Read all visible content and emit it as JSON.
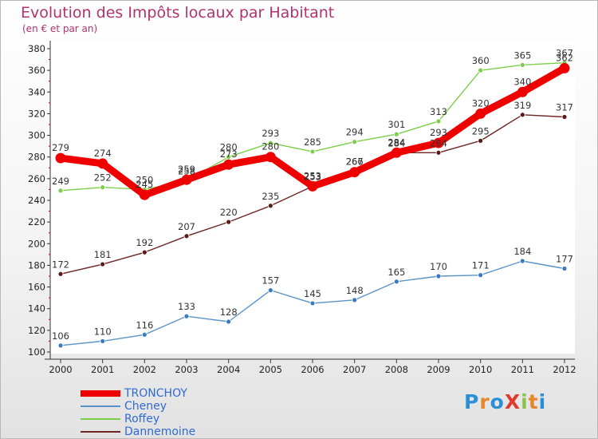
{
  "header": {
    "title": "Evolution des Impôts locaux par Habitant",
    "subtitle": "(en € et par an)"
  },
  "logo": {
    "text": "ProXiti",
    "colors": [
      "#2a8fd6",
      "#e8862a",
      "#2a8fd6",
      "#e03a2a",
      "#8bc34a",
      "#e8862a",
      "#2a8fd6"
    ]
  },
  "chart_data": {
    "type": "line",
    "title": "Evolution des Impôts locaux par Habitant",
    "subtitle": "(en € et par an)",
    "xlabel": "",
    "ylabel": "",
    "categories": [
      "2000",
      "2001",
      "2002",
      "2003",
      "2004",
      "2005",
      "2006",
      "2007",
      "2008",
      "2009",
      "2010",
      "2011",
      "2012"
    ],
    "ylim": [
      100,
      380
    ],
    "yticks": [
      100,
      120,
      140,
      160,
      180,
      200,
      220,
      240,
      260,
      280,
      300,
      320,
      340,
      360,
      380
    ],
    "grid": false,
    "legend_position": "bottom-left",
    "series": [
      {
        "name": "TRONCHOY",
        "color": "#ee0000",
        "bold": true,
        "values": [
          279,
          274,
          245,
          259,
          273,
          280,
          253,
          266,
          284,
          293,
          320,
          340,
          362
        ],
        "labels": [
          "279",
          "274",
          "245",
          "259",
          "273",
          "280",
          "253",
          "266",
          "284",
          "293",
          "320",
          "340",
          "362"
        ]
      },
      {
        "name": "Cheney",
        "color": "#5a93c8",
        "point_color": "#3a7bc0",
        "values": [
          106,
          110,
          116,
          133,
          128,
          157,
          145,
          148,
          165,
          170,
          171,
          184,
          177
        ],
        "labels": [
          "106",
          "110",
          "116",
          "133",
          "128",
          "157",
          "145",
          "148",
          "165",
          "170",
          "171",
          "184",
          "177"
        ]
      },
      {
        "name": "Roffey",
        "color": "#7ccd4a",
        "point_color": "#7ccd4a",
        "values": [
          249,
          252,
          250,
          258,
          280,
          293,
          285,
          294,
          301,
          313,
          360,
          365,
          367
        ],
        "labels": [
          "249",
          "252",
          "250",
          "258",
          "280",
          "293",
          "285",
          "294",
          "301",
          "313",
          "360",
          "365",
          "367"
        ]
      },
      {
        "name": "Dannemoine",
        "color": "#6e2525",
        "point_color": "#5a1a1a",
        "values": [
          172,
          181,
          192,
          207,
          220,
          235,
          253,
          267,
          284,
          284,
          295,
          319,
          317
        ],
        "labels": [
          "172",
          "181",
          "192",
          "207",
          "220",
          "235",
          "253",
          "267",
          "284",
          "284",
          "295",
          "319",
          "317"
        ]
      }
    ]
  }
}
